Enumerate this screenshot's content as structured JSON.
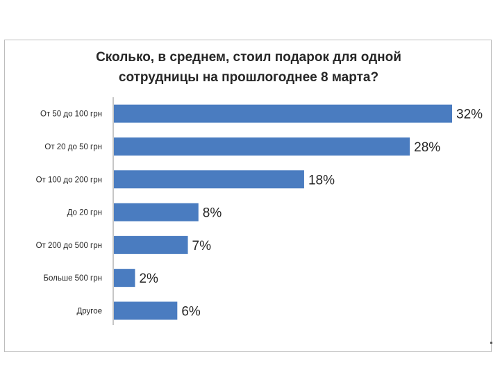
{
  "chart_data": {
    "type": "bar",
    "orientation": "horizontal",
    "title_lines": [
      "Сколько, в среднем, стоил подарок для одной",
      "сотрудницы на прошлогоднее 8 марта?"
    ],
    "categories": [
      "От 50 до 100 грн",
      "От 20 до 50 грн",
      "От 100 до 200 грн",
      "До 20 грн",
      "От 200 до 500 грн",
      "Больше 500 грн",
      "Другое"
    ],
    "values": [
      32,
      28,
      18,
      8,
      7,
      2,
      6
    ],
    "value_labels": [
      "32%",
      "28%",
      "18%",
      "8%",
      "7%",
      "2%",
      "6%"
    ],
    "unit": "%",
    "xlim": [
      0,
      32
    ],
    "grid": false,
    "legend": "none",
    "bar_color": "#4a7cc0"
  }
}
